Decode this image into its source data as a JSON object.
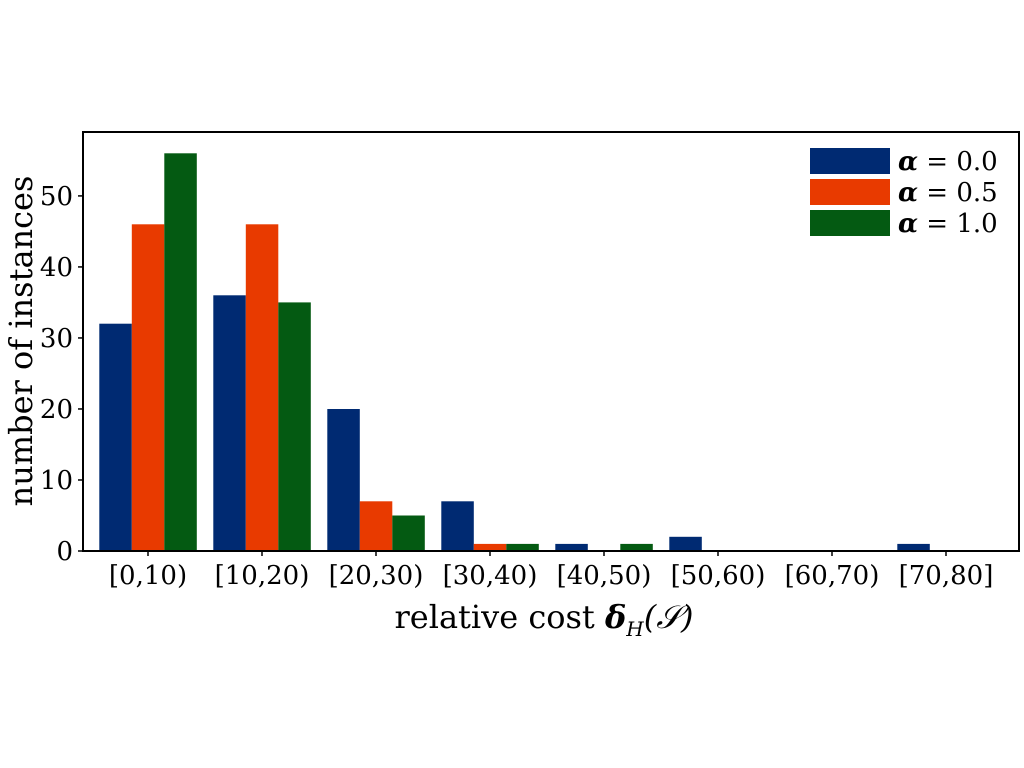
{
  "chart_data": {
    "type": "bar",
    "categories": [
      "[0,10)",
      "[10,20)",
      "[20,30)",
      "[30,40)",
      "[40,50)",
      "[50,60)",
      "[60,70)",
      "[70,80]"
    ],
    "series": [
      {
        "name": "α = 0.0",
        "symbol": "α",
        "value_label": "= 0.0",
        "color": "#002a72",
        "values": [
          32,
          36,
          20,
          7,
          1,
          2,
          0,
          1
        ]
      },
      {
        "name": "α = 0.5",
        "symbol": "α",
        "value_label": "= 0.5",
        "color": "#e83a00",
        "values": [
          46,
          46,
          7,
          1,
          0,
          0,
          0,
          0
        ]
      },
      {
        "name": "α = 1.0",
        "symbol": "α",
        "value_label": "= 1.0",
        "color": "#045a12",
        "values": [
          56,
          35,
          5,
          1,
          1,
          0,
          0,
          0
        ]
      }
    ],
    "xlabel": "relative cost δH(𝒮)",
    "xlabel_parts": {
      "text": "relative cost ",
      "symbol": "δ",
      "subscript": "H",
      "argument": "(𝒮)"
    },
    "ylabel": "number of instances",
    "ylim": [
      0,
      59
    ],
    "yticks": [
      0,
      10,
      20,
      30,
      40,
      50
    ],
    "grid": false,
    "legend_position": "top-right"
  }
}
